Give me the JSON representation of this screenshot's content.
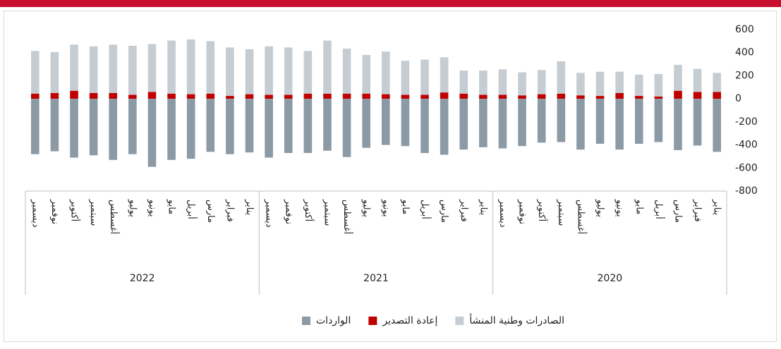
{
  "chart_data": {
    "type": "stacked_bar",
    "categories": [
      "ديسمبر",
      "نوفمبر",
      "أكتوبر",
      "سبتمبر",
      "أغسطس",
      "يوليو",
      "يونيو",
      "مايو",
      "أبريل",
      "مارس",
      "فبراير",
      "يناير",
      "ديسمبر",
      "نوفمبر",
      "أكتوبر",
      "سبتمبر",
      "أغسطس",
      "يوليو",
      "يونيو",
      "مايو",
      "أبريل",
      "مارس",
      "فبراير",
      "يناير",
      "ديسمبر",
      "نوفمبر",
      "أكتوبر",
      "سبتمبر",
      "أغسطس",
      "يوليو",
      "يونيو",
      "مايو",
      "أبريل",
      "مارس",
      "فبراير",
      "يناير"
    ],
    "year_groups": [
      "2022",
      "2021",
      "2020"
    ],
    "series": [
      {
        "name": "إعادة التصدير",
        "color": "#c00000",
        "stack": "pos",
        "values": [
          45,
          50,
          70,
          50,
          50,
          35,
          60,
          45,
          40,
          45,
          25,
          40,
          35,
          35,
          45,
          45,
          45,
          45,
          40,
          35,
          35,
          55,
          45,
          35,
          35,
          30,
          40,
          45,
          30,
          25,
          50,
          25,
          20,
          70,
          60,
          60
        ]
      },
      {
        "name": "الصادرات وطنية المنشأ",
        "color": "#c5cdd3",
        "stack": "pos",
        "values": [
          370,
          355,
          400,
          405,
          420,
          425,
          415,
          460,
          475,
          455,
          420,
          390,
          420,
          410,
          370,
          460,
          390,
          335,
          370,
          295,
          305,
          305,
          200,
          210,
          220,
          200,
          210,
          280,
          195,
          210,
          185,
          185,
          195,
          225,
          200,
          165
        ]
      },
      {
        "name": "الواردات",
        "color": "#8c9aa5",
        "stack": "neg",
        "values": [
          -480,
          -455,
          -510,
          -490,
          -530,
          -480,
          -590,
          -530,
          -520,
          -460,
          -480,
          -465,
          -510,
          -470,
          -470,
          -450,
          -505,
          -425,
          -400,
          -410,
          -470,
          -485,
          -440,
          -420,
          -430,
          -410,
          -380,
          -375,
          -440,
          -390,
          -440,
          -390,
          -375,
          -445,
          -405,
          -460
        ]
      }
    ],
    "ylim": [
      -800,
      600
    ],
    "yticks": [
      600,
      400,
      200,
      0,
      -200,
      -400,
      -600,
      -800
    ]
  }
}
